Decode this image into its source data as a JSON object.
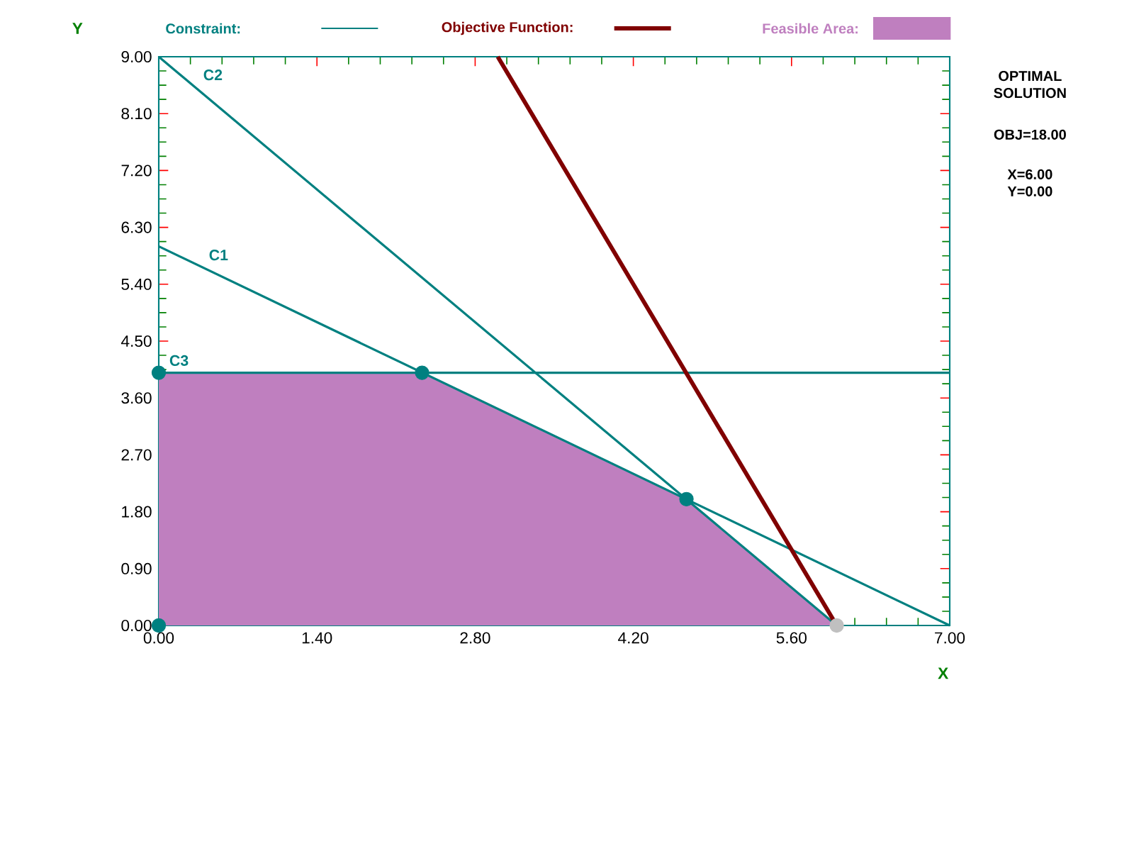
{
  "chart_data": {
    "type": "line",
    "xlabel": "X",
    "ylabel": "Y",
    "xlim": [
      0,
      7
    ],
    "ylim": [
      0,
      9
    ],
    "xticks": [
      {
        "value": 0,
        "label": "0.00"
      },
      {
        "value": 1.4,
        "label": "1.40"
      },
      {
        "value": 2.8,
        "label": "2.80"
      },
      {
        "value": 4.2,
        "label": "4.20"
      },
      {
        "value": 5.6,
        "label": "5.60"
      },
      {
        "value": 7,
        "label": "7.00"
      }
    ],
    "yticks": [
      {
        "value": 0,
        "label": "0.00"
      },
      {
        "value": 0.9,
        "label": "0.90"
      },
      {
        "value": 1.8,
        "label": "1.80"
      },
      {
        "value": 2.7,
        "label": "2.70"
      },
      {
        "value": 3.6,
        "label": "3.60"
      },
      {
        "value": 4.5,
        "label": "4.50"
      },
      {
        "value": 5.4,
        "label": "5.40"
      },
      {
        "value": 6.3,
        "label": "6.30"
      },
      {
        "value": 7.2,
        "label": "7.20"
      },
      {
        "value": 8.1,
        "label": "8.10"
      },
      {
        "value": 9,
        "label": "9.00"
      }
    ],
    "grid": false,
    "legend": "top",
    "annotations": [
      "Constraint:",
      "OPTIMAL SOLUTION",
      "OBJ=18.00",
      "X=6.00",
      "Y=0.00"
    ],
    "series": [
      {
        "type": "area",
        "name": "Feasible Area:",
        "color": "#bf7fbf",
        "x": [
          0,
          0,
          2.33,
          4.67,
          6
        ],
        "values": [
          0,
          4,
          4,
          2,
          0
        ]
      },
      {
        "name": "C1",
        "color": "#008080",
        "x": [
          0,
          7
        ],
        "values": [
          6,
          0
        ]
      },
      {
        "name": "C2",
        "color": "#008080",
        "x": [
          0,
          6
        ],
        "values": [
          9,
          0
        ]
      },
      {
        "name": "C3",
        "color": "#008080",
        "x": [
          0,
          7
        ],
        "values": [
          4,
          4
        ]
      },
      {
        "name": "Objective Function:",
        "color": "#800000",
        "x": [
          3,
          6
        ],
        "values": [
          9,
          0
        ]
      },
      {
        "type": "scatter",
        "color": "#008080",
        "x": [
          0,
          0,
          2.33,
          4.67
        ],
        "values": [
          0,
          4,
          4,
          2
        ]
      },
      {
        "type": "scatter",
        "color": "#c0c0c0",
        "x": [
          6
        ],
        "values": [
          0
        ]
      }
    ]
  }
}
